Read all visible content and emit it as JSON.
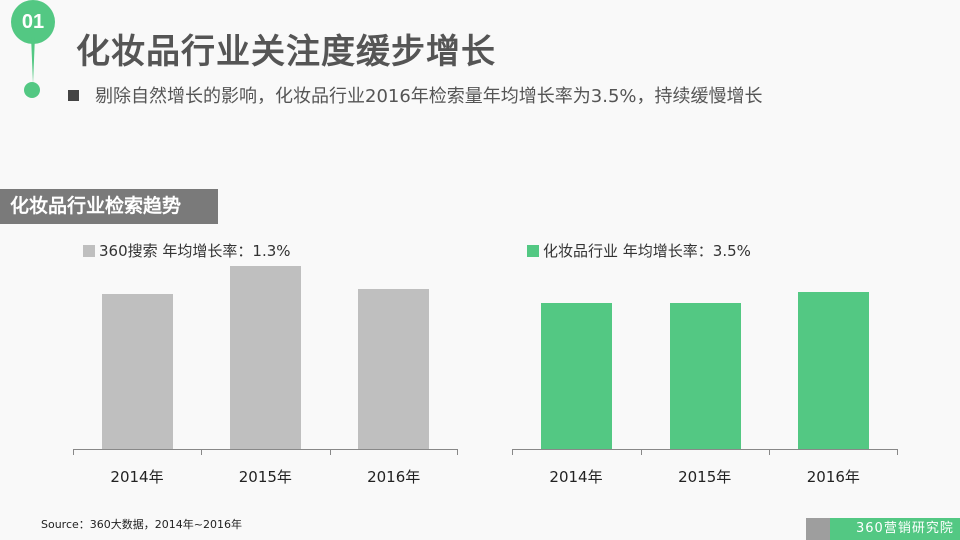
{
  "header": {
    "badge_number": "01",
    "title": "化妆品行业关注度缓步增长",
    "subtitle": "剔除自然增长的影响，化妆品行业2016年检索量年均增长率为3.5%，持续缓慢增长"
  },
  "section": {
    "label": "化妆品行业检索趋势"
  },
  "colors": {
    "accent": "#53c883",
    "gray_bar": "#bfbfbf",
    "section_bg": "#7a7a7a",
    "title_text": "#555555"
  },
  "footer": {
    "source": "Source：360大数据，2014年~2016年",
    "brand": "360营销研究院"
  },
  "chart_data": [
    {
      "type": "bar",
      "title": "",
      "legend": "360搜索 年均增长率：1.3%",
      "categories": [
        "2014年",
        "2015年",
        "2016年"
      ],
      "values": [
        155,
        183,
        160
      ],
      "color": "#bfbfbf",
      "xlabel": "",
      "ylabel": "",
      "note": "relative bar heights (no y-axis shown)",
      "grid": false,
      "legend_position": "top-left"
    },
    {
      "type": "bar",
      "title": "",
      "legend": "化妆品行业 年均增长率：3.5%",
      "categories": [
        "2014年",
        "2015年",
        "2016年"
      ],
      "values": [
        146,
        146,
        157
      ],
      "color": "#53c883",
      "xlabel": "",
      "ylabel": "",
      "note": "relative bar heights (no y-axis shown)",
      "grid": false,
      "legend_position": "top-left"
    }
  ]
}
